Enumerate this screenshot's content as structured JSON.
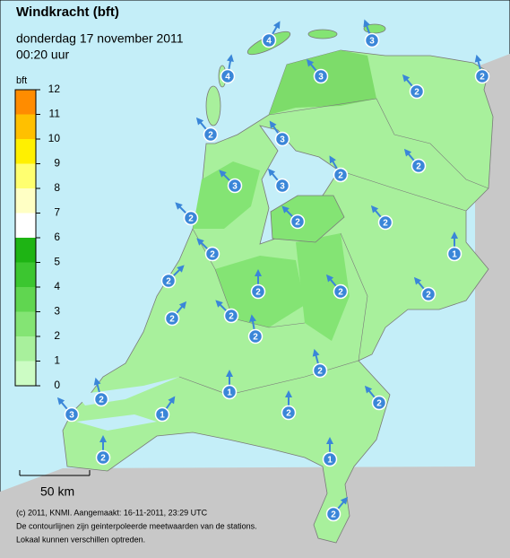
{
  "header": {
    "title": "Windkracht (bft)",
    "date": "donderdag 17 november 2011",
    "time": "00:20 uur"
  },
  "legend": {
    "unit": "bft",
    "ticks": [
      0,
      1,
      2,
      3,
      4,
      5,
      6,
      7,
      8,
      9,
      10,
      11,
      12
    ],
    "colors": [
      "#ccfcc4",
      "#a8f09c",
      "#84e474",
      "#60d650",
      "#3cc630",
      "#1eb414",
      "#ffffff",
      "#ffffc4",
      "#ffff70",
      "#fff000",
      "#ffc000",
      "#ff8c00"
    ]
  },
  "scale": {
    "label": "50 km"
  },
  "stations": [
    {
      "value": 4
    },
    {
      "value": 3
    },
    {
      "value": 4
    },
    {
      "value": 2
    },
    {
      "value": 3
    },
    {
      "value": 2
    },
    {
      "value": 2
    },
    {
      "value": 3
    },
    {
      "value": 2
    },
    {
      "value": 2
    },
    {
      "value": 3
    },
    {
      "value": 3
    },
    {
      "value": 2
    },
    {
      "value": 2
    },
    {
      "value": 2
    },
    {
      "value": 1
    },
    {
      "value": 2
    },
    {
      "value": 2
    },
    {
      "value": 2
    },
    {
      "value": 2
    },
    {
      "value": 2
    },
    {
      "value": 2
    },
    {
      "value": 2
    },
    {
      "value": 2
    },
    {
      "value": 2
    },
    {
      "value": 1
    },
    {
      "value": 2
    },
    {
      "value": 2
    },
    {
      "value": 1
    },
    {
      "value": 2
    },
    {
      "value": 3
    },
    {
      "value": 1
    },
    {
      "value": 2
    },
    {
      "value": 2
    }
  ],
  "footer": {
    "lines": [
      "(c) 2011, KNMI. Aangemaakt: 16-11-2011, 23:29 UTC",
      "De contourlijnen zijn geinterpoleerde meetwaarden van de stations.",
      "Lokaal kunnen verschillen optreden."
    ]
  }
}
